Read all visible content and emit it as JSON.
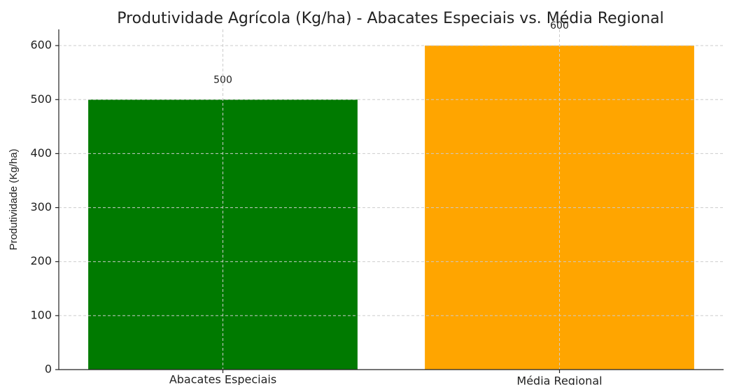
{
  "chart_data": {
    "type": "bar",
    "title": "Produtividade Agrícola (Kg/ha) - Abacates Especiais vs. Média Regional",
    "ylabel": "Produtividade (Kg/ha)",
    "categories": [
      "Abacates Especiais",
      "Média Regional"
    ],
    "values": [
      500,
      600
    ],
    "colors": [
      "#007a00",
      "#ffa500"
    ],
    "ylim": [
      0,
      630
    ],
    "yticks": [
      0,
      100,
      200,
      300,
      400,
      500,
      600
    ],
    "grid": true
  }
}
